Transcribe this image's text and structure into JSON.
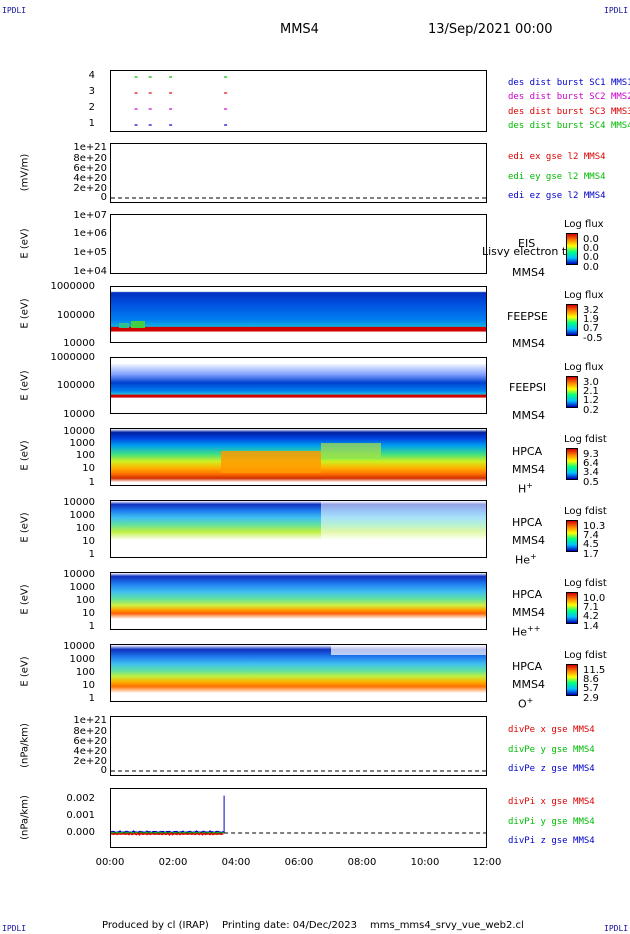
{
  "corner_label": "IPDLI",
  "header": {
    "spacecraft": "MMS4",
    "datetime": "13/Sep/2021 00:00"
  },
  "footer": {
    "produced": "Produced by cl (IRAP)",
    "printing": "Printing date: 04/Dec/2023",
    "file": "mms_mms4_srvy_vue_web2.cl"
  },
  "x_ticks": [
    "00:00",
    "02:00",
    "04:00",
    "06:00",
    "08:00",
    "10:00",
    "12:00"
  ],
  "colors": {
    "red": "#dd0000",
    "green": "#00bb00",
    "blue": "#0000cc",
    "magenta": "#cc00cc"
  },
  "panels": {
    "p1": {
      "ticks": [
        "4",
        "3",
        "2",
        "1"
      ],
      "labels": [
        "des dist burst SC1 MMS1",
        "des dist burst SC2 MMS2",
        "des dist burst SC3 MMS3",
        "des dist burst SC4 MMS4"
      ]
    },
    "p2": {
      "ylabel": "(mV/m)",
      "ticks": [
        "1e+21",
        "8e+20",
        "6e+20",
        "4e+20",
        "2e+20",
        "0"
      ],
      "labels": [
        "edi ex gse l2 MMS4",
        "edi ey gse l2 MMS4",
        "edi ez gse l2 MMS4"
      ]
    },
    "p3": {
      "ylabel": "E (eV)",
      "ticks": [
        "1e+07",
        "1e+06",
        "1e+05",
        "1e+04"
      ],
      "inst": "EIS",
      "sub": "MMS4",
      "overlay": "Lisvy electron to",
      "cb_title": "Log flux",
      "cb": [
        "0.0",
        "0.0",
        "0.0",
        "0.0"
      ]
    },
    "p4": {
      "ylabel": "E (eV)",
      "ticks": [
        "1000000",
        "100000",
        "10000"
      ],
      "inst": "FEEPSE",
      "sub": "MMS4",
      "cb_title": "Log flux",
      "cb": [
        "3.2",
        "1.9",
        "0.7",
        "-0.5"
      ]
    },
    "p5": {
      "ylabel": "E (eV)",
      "ticks": [
        "1000000",
        "100000",
        "10000"
      ],
      "inst": "FEEPSI",
      "sub": "MMS4",
      "cb_title": "Log flux",
      "cb": [
        "3.0",
        "2.1",
        "1.2",
        "0.2"
      ]
    },
    "p6": {
      "ylabel": "E (eV)",
      "ticks": [
        "10000",
        "1000",
        "100",
        "10",
        "1"
      ],
      "inst": "HPCA",
      "sub": "MMS4",
      "species": "H",
      "charge": "+",
      "cb_title": "Log fdist",
      "cb": [
        "9.3",
        "6.4",
        "3.4",
        "0.5"
      ]
    },
    "p7": {
      "ylabel": "E (eV)",
      "ticks": [
        "10000",
        "1000",
        "100",
        "10",
        "1"
      ],
      "inst": "HPCA",
      "sub": "MMS4",
      "species": "He",
      "charge": "+",
      "cb_title": "Log fdist",
      "cb": [
        "10.3",
        "7.4",
        "4.5",
        "1.7"
      ]
    },
    "p8": {
      "ylabel": "E (eV)",
      "ticks": [
        "10000",
        "1000",
        "100",
        "10",
        "1"
      ],
      "inst": "HPCA",
      "sub": "MMS4",
      "species": "He",
      "charge": "++",
      "cb_title": "Log fdist",
      "cb": [
        "10.0",
        "7.1",
        "4.2",
        "1.4"
      ]
    },
    "p9": {
      "ylabel": "E (eV)",
      "ticks": [
        "10000",
        "1000",
        "100",
        "10",
        "1"
      ],
      "inst": "HPCA",
      "sub": "MMS4",
      "species": "O",
      "charge": "+",
      "cb_title": "Log fdist",
      "cb": [
        "11.5",
        "8.6",
        "5.7",
        "2.9"
      ]
    },
    "p10": {
      "ylabel": "(nPa/km)",
      "ticks": [
        "1e+21",
        "8e+20",
        "6e+20",
        "4e+20",
        "2e+20",
        "0"
      ],
      "labels": [
        "divPe x gse MMS4",
        "divPe y gse MMS4",
        "divPe z gse MMS4"
      ]
    },
    "p11": {
      "ylabel": "(nPa/km)",
      "ticks": [
        "0.002",
        "0.001",
        "0.000"
      ],
      "labels": [
        "divPi x gse MMS4",
        "divPi y gse MMS4",
        "divPi z gse MMS4"
      ]
    }
  },
  "chart_data": {
    "type": "heatmap",
    "x_range": [
      "00:00",
      "12:00"
    ],
    "burst_intervals": [
      {
        "spacecraft": "MMS1",
        "level": 4,
        "times_h": [
          0.75,
          1.2,
          1.85,
          3.6
        ]
      },
      {
        "spacecraft": "MMS2",
        "level": 3,
        "times_h": [
          0.75,
          1.2,
          1.85,
          3.6
        ]
      },
      {
        "spacecraft": "MMS3",
        "level": 2,
        "times_h": [
          0.75,
          1.2,
          1.85,
          3.6
        ]
      },
      {
        "spacecraft": "MMS4",
        "level": 1,
        "times_h": [
          0.75,
          1.2,
          1.85,
          3.6
        ]
      }
    ],
    "divPi_spike": {
      "time_h": 3.6,
      "value": 0.0022
    }
  }
}
